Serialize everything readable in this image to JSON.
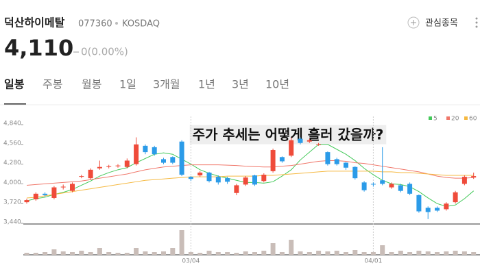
{
  "header": {
    "name": "덕산하이메탈",
    "code": "077360",
    "market": "KOSDAQ",
    "watch": "관심종목",
    "price": "4,110",
    "change": "0(0.00%)"
  },
  "tabs": [
    "일봉",
    "주봉",
    "월봉",
    "1일",
    "3개월",
    "1년",
    "3년",
    "10년"
  ],
  "chart_data": {
    "type": "candlestick",
    "title": "주가 추세는 어떻게 흘러 갔을까?",
    "categories": [
      null,
      null,
      null,
      null,
      null,
      null,
      null,
      null,
      null,
      null,
      null,
      null,
      null,
      null,
      null,
      null,
      null,
      null,
      "03/04",
      null,
      null,
      null,
      null,
      null,
      null,
      null,
      null,
      null,
      null,
      null,
      null,
      null,
      null,
      null,
      null,
      null,
      null,
      null,
      "04/01",
      null,
      null,
      null,
      null,
      null,
      null,
      null,
      null,
      null,
      null,
      null
    ],
    "open": [
      3740,
      3780,
      3860,
      3800,
      3950,
      3900,
      4100,
      4080,
      4220,
      4240,
      4250,
      4240,
      4280,
      4540,
      4520,
      4350,
      4380,
      4600,
      4100,
      4120,
      4160,
      4100,
      4080,
      3870,
      3990,
      4120,
      4040,
      4180,
      4380,
      4400,
      4640,
      4600,
      4560,
      4450,
      4350,
      4300,
      4240,
      4020,
      4000,
      4050,
      3950,
      3980,
      4000,
      3840,
      3660,
      3660,
      3640,
      3740,
      4000,
      4090
    ],
    "high": [
      3790,
      3880,
      3880,
      3970,
      3990,
      4020,
      4130,
      4220,
      4330,
      4270,
      4280,
      4360,
      4660,
      4560,
      4540,
      4370,
      4390,
      4620,
      4110,
      4180,
      4170,
      4120,
      4100,
      4000,
      4110,
      4130,
      4150,
      4500,
      4390,
      4660,
      4660,
      4640,
      4580,
      4460,
      4370,
      4310,
      4250,
      4040,
      4020,
      4520,
      4020,
      4000,
      4020,
      3850,
      3680,
      3680,
      3740,
      3900,
      4120,
      4160
    ],
    "low": [
      3720,
      3760,
      3820,
      3780,
      3920,
      3880,
      4080,
      4060,
      4200,
      4220,
      4230,
      4220,
      4260,
      4420,
      4400,
      4280,
      4280,
      4110,
      4040,
      4100,
      4020,
      3990,
      4000,
      3840,
      3970,
      3970,
      4020,
      4160,
      4300,
      4380,
      4560,
      4580,
      4540,
      4260,
      4260,
      4200,
      4060,
      3890,
      3960,
      3980,
      3930,
      3880,
      3840,
      3590,
      3500,
      3600,
      3620,
      3720,
      3980,
      4070
    ],
    "close": [
      3770,
      3860,
      3840,
      3950,
      3960,
      4000,
      4110,
      4200,
      4240,
      4250,
      4260,
      4330,
      4560,
      4450,
      4420,
      4300,
      4300,
      4130,
      4070,
      4160,
      4040,
      4020,
      4030,
      3980,
      4090,
      3990,
      4130,
      4480,
      4320,
      4620,
      4580,
      4620,
      4560,
      4280,
      4280,
      4230,
      4080,
      3910,
      3990,
      4000,
      4000,
      3900,
      3860,
      3610,
      3600,
      3620,
      3720,
      3880,
      4100,
      4110
    ],
    "volume": [
      3,
      3,
      4,
      8,
      5,
      4,
      6,
      4,
      10,
      4,
      3,
      3,
      10,
      5,
      4,
      5,
      10,
      36,
      4,
      3,
      6,
      4,
      4,
      3,
      5,
      4,
      6,
      17,
      4,
      22,
      5,
      4,
      6,
      5,
      6,
      4,
      7,
      4,
      4,
      14,
      4,
      6,
      4,
      6,
      5,
      4,
      5,
      6,
      5,
      4
    ],
    "volume_lim": [
      0,
      40
    ],
    "up_color": "#ef4b3a",
    "down_color": "#2b9be8",
    "volume_color": "#c9bdb8",
    "series": [
      {
        "name": "5",
        "color": "#44c95a",
        "values": [
          3760,
          3790,
          3810,
          3850,
          3880,
          3920,
          3980,
          4040,
          4110,
          4160,
          4200,
          4230,
          4300,
          4360,
          4420,
          4440,
          4420,
          4350,
          4280,
          4200,
          4150,
          4110,
          4080,
          4050,
          4020,
          4020,
          4010,
          4030,
          4110,
          4200,
          4340,
          4450,
          4560,
          4560,
          4490,
          4420,
          4330,
          4220,
          4130,
          4050,
          4000,
          3990,
          3960,
          3890,
          3800,
          3720,
          3680,
          3700,
          3790,
          3900
        ]
      },
      {
        "name": "20",
        "color": "#f0776a",
        "values": [
          3980,
          3990,
          4000,
          4010,
          4020,
          4030,
          4040,
          4060,
          4080,
          4100,
          4120,
          4140,
          4170,
          4200,
          4220,
          4240,
          4250,
          4260,
          4270,
          4270,
          4270,
          4270,
          4265,
          4260,
          4250,
          4245,
          4240,
          4240,
          4250,
          4260,
          4280,
          4300,
          4320,
          4330,
          4330,
          4320,
          4300,
          4290,
          4270,
          4250,
          4230,
          4210,
          4190,
          4170,
          4140,
          4110,
          4090,
          4080,
          4080,
          4090
        ]
      },
      {
        "name": "60",
        "color": "#f5b942",
        "values": [
          3800,
          3810,
          3830,
          3850,
          3870,
          3890,
          3910,
          3930,
          3950,
          3970,
          3990,
          4010,
          4030,
          4050,
          4060,
          4070,
          4080,
          4090,
          4100,
          4100,
          4100,
          4100,
          4110,
          4110,
          4110,
          4110,
          4120,
          4120,
          4130,
          4140,
          4150,
          4160,
          4170,
          4180,
          4180,
          4180,
          4180,
          4180,
          4180,
          4170,
          4170,
          4160,
          4160,
          4150,
          4140,
          4130,
          4120,
          4120,
          4120,
          4120
        ]
      }
    ],
    "ylim": [
      3440,
      4840
    ],
    "yticks": [
      {
        "value": 3440,
        "label": "3,440"
      },
      {
        "value": 3720,
        "label": "3,720"
      },
      {
        "value": 4000,
        "label": "4,000"
      },
      {
        "value": 4280,
        "label": "4,280"
      },
      {
        "value": 4560,
        "label": "4,560"
      },
      {
        "value": 4840,
        "label": "4,840"
      }
    ]
  }
}
